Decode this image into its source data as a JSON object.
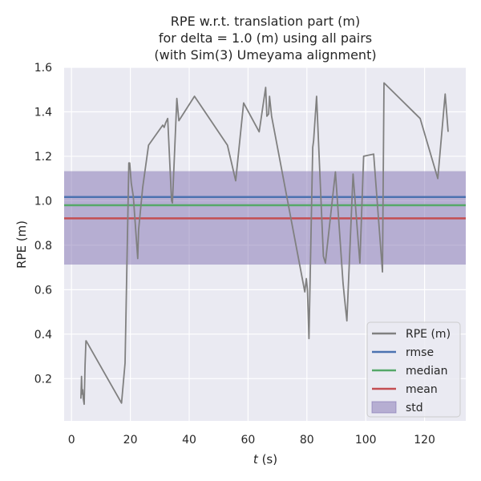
{
  "chart_data": {
    "type": "line",
    "title_lines": [
      "RPE w.r.t. translation part (m)",
      "for delta = 1.0 (m) using all pairs",
      "(with Sim(3) Umeyama alignment)"
    ],
    "xlabel_var": "t",
    "xlabel_unit": " (s)",
    "ylabel": "RPE (m)",
    "xlim": [
      -2.5,
      134
    ],
    "ylim": [
      0.01,
      1.6
    ],
    "xticks": [
      0,
      20,
      40,
      60,
      80,
      100,
      120
    ],
    "yticks": [
      0.2,
      0.4,
      0.6,
      0.8,
      1.0,
      1.2,
      1.4,
      1.6
    ],
    "ytick_labels": [
      "0.2",
      "0.4",
      "0.6",
      "0.8",
      "1.0",
      "1.2",
      "1.4",
      "1.6"
    ],
    "grid": true,
    "legend_position": "lower-right",
    "colors": {
      "background": "#eaeaf2",
      "grid": "#ffffff",
      "rpe": "#808080",
      "rmse": "#4c72b0",
      "median": "#55a868",
      "mean": "#c44e52",
      "std": "#8172b2"
    },
    "legend": [
      {
        "label": "RPE (m)",
        "kind": "line",
        "color": "#808080"
      },
      {
        "label": "rmse",
        "kind": "line",
        "color": "#4c72b0"
      },
      {
        "label": "median",
        "kind": "line",
        "color": "#55a868"
      },
      {
        "label": "mean",
        "kind": "line",
        "color": "#c44e52"
      },
      {
        "label": "std",
        "kind": "patch",
        "color": "#8172b2"
      }
    ],
    "series": [
      {
        "name": "RPE (m)",
        "x": [
          3.2,
          3.4,
          3.6,
          3.8,
          4.0,
          4.3,
          4.6,
          4.9,
          5.0,
          17.0,
          18.2,
          19.5,
          19.8,
          20.3,
          21.0,
          22.5,
          22.8,
          24.2,
          26.2,
          31.0,
          31.5,
          32.0,
          32.7,
          34.0,
          34.3,
          35.8,
          36.5,
          41.8,
          53.0,
          55.8,
          58.5,
          63.8,
          66.0,
          66.4,
          67.0,
          67.3,
          68.0,
          79.3,
          79.8,
          80.2,
          80.7,
          82.0,
          82.3,
          83.3,
          85.6,
          86.3,
          89.7,
          92.3,
          92.8,
          93.6,
          95.7,
          98.0,
          99.3,
          102.7,
          105.7,
          106.2,
          118.5,
          124.5,
          127.0,
          128.0
        ],
        "y": [
          0.11,
          0.21,
          0.13,
          0.15,
          0.11,
          0.085,
          0.26,
          0.37,
          0.37,
          0.09,
          0.27,
          1.17,
          1.17,
          1.08,
          1.02,
          0.74,
          0.87,
          1.06,
          1.25,
          1.34,
          1.33,
          1.35,
          1.37,
          1.0,
          0.99,
          1.46,
          1.36,
          1.47,
          1.25,
          1.09,
          1.44,
          1.31,
          1.51,
          1.38,
          1.39,
          1.47,
          1.38,
          0.59,
          0.65,
          0.6,
          0.38,
          1.24,
          1.27,
          1.47,
          0.75,
          0.72,
          1.13,
          0.63,
          0.56,
          0.46,
          1.12,
          0.72,
          1.2,
          1.21,
          0.68,
          1.53,
          1.37,
          1.1,
          1.48,
          1.31
        ]
      },
      {
        "name": "rmse",
        "value": 1.017
      },
      {
        "name": "median",
        "value": 0.98
      },
      {
        "name": "mean",
        "value": 0.921
      },
      {
        "name": "std",
        "lower": 0.713,
        "upper": 1.133
      }
    ]
  }
}
